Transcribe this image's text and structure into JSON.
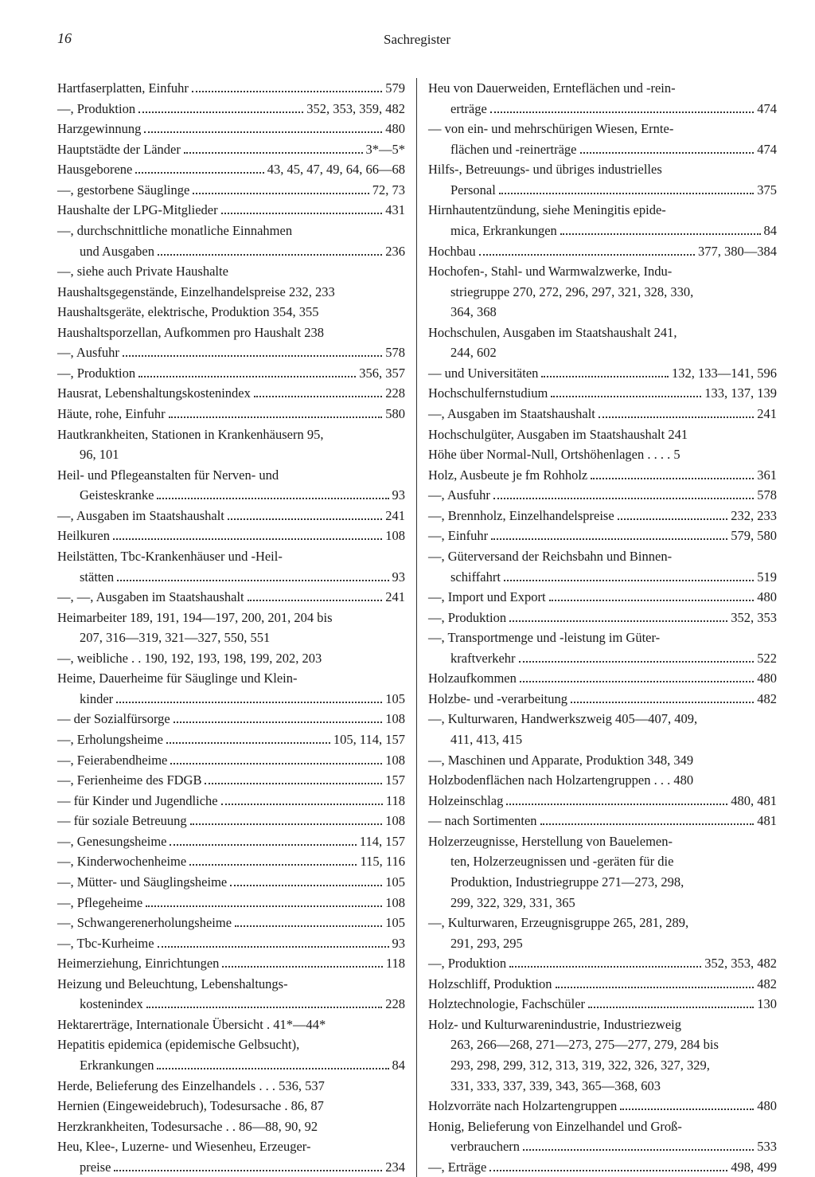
{
  "page_number": "16",
  "header": "Sachregister",
  "left": [
    {
      "text": "Hartfaserplatten, Einfuhr",
      "pages": "579",
      "dots": true
    },
    {
      "text": "—, Produktion",
      "pages": "352, 353, 359, 482",
      "dots": true
    },
    {
      "text": "Harzgewinnung",
      "pages": "480",
      "dots": true
    },
    {
      "text": "Hauptstädte der Länder",
      "pages": "3*—5*",
      "dots": true
    },
    {
      "text": "Hausgeborene",
      "pages": "43, 45, 47, 49, 64, 66—68",
      "dots": true
    },
    {
      "text": "—, gestorbene Säuglinge",
      "pages": "72, 73",
      "dots": true
    },
    {
      "text": "Haushalte der LPG-Mitglieder",
      "pages": "431",
      "dots": true
    },
    {
      "text": "—, durchschnittliche monatliche Einnahmen",
      "pages": "",
      "dots": false
    },
    {
      "text": "und Ausgaben",
      "pages": "236",
      "dots": true,
      "cont": true
    },
    {
      "text": "—, siehe auch Private Haushalte",
      "pages": "",
      "dots": false
    },
    {
      "text": "Haushaltsgegenstände, Einzelhandelspreise 232, 233",
      "pages": "",
      "dots": false
    },
    {
      "text": "Haushaltsgeräte, elektrische, Produktion   354, 355",
      "pages": "",
      "dots": false
    },
    {
      "text": "Haushaltsporzellan, Aufkommen pro Haushalt 238",
      "pages": "",
      "dots": false
    },
    {
      "text": "—, Ausfuhr",
      "pages": "578",
      "dots": true
    },
    {
      "text": "—, Produktion",
      "pages": "356, 357",
      "dots": true
    },
    {
      "text": "Hausrat, Lebenshaltungskostenindex",
      "pages": "228",
      "dots": true
    },
    {
      "text": "Häute, rohe, Einfuhr",
      "pages": "580",
      "dots": true
    },
    {
      "text": "Hautkrankheiten, Stationen in Krankenhäusern 95,",
      "pages": "",
      "dots": false
    },
    {
      "text": "96, 101",
      "pages": "",
      "dots": false,
      "cont": true
    },
    {
      "text": "Heil- und Pflegeanstalten für Nerven- und",
      "pages": "",
      "dots": false
    },
    {
      "text": "Geisteskranke",
      "pages": "93",
      "dots": true,
      "cont": true
    },
    {
      "text": "—, Ausgaben im Staatshaushalt",
      "pages": "241",
      "dots": true
    },
    {
      "text": "Heilkuren",
      "pages": "108",
      "dots": true
    },
    {
      "text": "Heilstätten, Tbc-Krankenhäuser und -Heil-",
      "pages": "",
      "dots": false
    },
    {
      "text": "stätten",
      "pages": "93",
      "dots": true,
      "cont": true
    },
    {
      "text": "—, —, Ausgaben im Staatshaushalt",
      "pages": "241",
      "dots": true
    },
    {
      "text": "Heimarbeiter 189, 191, 194—197, 200, 201, 204 bis",
      "pages": "",
      "dots": false
    },
    {
      "text": "207, 316—319, 321—327, 550, 551",
      "pages": "",
      "dots": false,
      "cont": true
    },
    {
      "text": "—, weibliche . . 190, 192, 193, 198, 199, 202, 203",
      "pages": "",
      "dots": false
    },
    {
      "text": "Heime, Dauerheime für Säuglinge und Klein-",
      "pages": "",
      "dots": false
    },
    {
      "text": "kinder",
      "pages": "105",
      "dots": true,
      "cont": true
    },
    {
      "text": "— der Sozialfürsorge",
      "pages": "108",
      "dots": true
    },
    {
      "text": "—, Erholungsheime",
      "pages": "105, 114, 157",
      "dots": true
    },
    {
      "text": "—, Feierabendheime",
      "pages": "108",
      "dots": true
    },
    {
      "text": "—, Ferienheime des FDGB",
      "pages": "157",
      "dots": true
    },
    {
      "text": "— für Kinder und Jugendliche",
      "pages": "118",
      "dots": true
    },
    {
      "text": "— für soziale Betreuung",
      "pages": "108",
      "dots": true
    },
    {
      "text": "—, Genesungsheime",
      "pages": "114, 157",
      "dots": true
    },
    {
      "text": "—, Kinderwochenheime",
      "pages": "115, 116",
      "dots": true
    },
    {
      "text": "—, Mütter- und Säuglingsheime",
      "pages": "105",
      "dots": true
    },
    {
      "text": "—, Pflegeheime",
      "pages": "108",
      "dots": true
    },
    {
      "text": "—, Schwangerenerholungsheime",
      "pages": "105",
      "dots": true
    },
    {
      "text": "—, Tbc-Kurheime",
      "pages": "93",
      "dots": true
    },
    {
      "text": "Heimerziehung, Einrichtungen",
      "pages": "118",
      "dots": true
    },
    {
      "text": "Heizung und Beleuchtung, Lebenshaltungs-",
      "pages": "",
      "dots": false
    },
    {
      "text": "kostenindex",
      "pages": "228",
      "dots": true,
      "cont": true
    },
    {
      "text": "Hektarerträge, Internationale Übersicht . 41*—44*",
      "pages": "",
      "dots": false
    },
    {
      "text": "Hepatitis epidemica (epidemische Gelbsucht),",
      "pages": "",
      "dots": false
    },
    {
      "text": "Erkrankungen",
      "pages": "84",
      "dots": true,
      "cont": true
    },
    {
      "text": "Herde, Belieferung des Einzelhandels . . . 536, 537",
      "pages": "",
      "dots": false
    },
    {
      "text": "Hernien (Eingeweidebruch), Todesursache . 86, 87",
      "pages": "",
      "dots": false
    },
    {
      "text": "Herzkrankheiten, Todesursache . . 86—88, 90, 92",
      "pages": "",
      "dots": false
    },
    {
      "text": "Heu, Klee-, Luzerne- und Wiesenheu, Erzeuger-",
      "pages": "",
      "dots": false
    },
    {
      "text": "preise",
      "pages": "234",
      "dots": true,
      "cont": true
    }
  ],
  "right": [
    {
      "text": "Heu von Dauerweiden, Ernteflächen und -rein-",
      "pages": "",
      "dots": false
    },
    {
      "text": "erträge",
      "pages": "474",
      "dots": true,
      "cont": true
    },
    {
      "text": "— von ein- und mehrschürigen Wiesen, Ernte-",
      "pages": "",
      "dots": false
    },
    {
      "text": "flächen und -reinerträge",
      "pages": "474",
      "dots": true,
      "cont": true
    },
    {
      "text": "Hilfs-, Betreuungs- und übriges industrielles",
      "pages": "",
      "dots": false
    },
    {
      "text": "Personal",
      "pages": "375",
      "dots": true,
      "cont": true
    },
    {
      "text": "Hirnhautentzündung, siehe Meningitis epide-",
      "pages": "",
      "dots": false
    },
    {
      "text": "mica, Erkrankungen",
      "pages": "84",
      "dots": true,
      "cont": true
    },
    {
      "text": "Hochbau",
      "pages": "377, 380—384",
      "dots": true
    },
    {
      "text": "Hochofen-, Stahl- und Warmwalzwerke, Indu-",
      "pages": "",
      "dots": false
    },
    {
      "text": "striegruppe  270, 272, 296, 297, 321, 328, 330,",
      "pages": "",
      "dots": false,
      "cont": true
    },
    {
      "text": "364, 368",
      "pages": "",
      "dots": false,
      "cont": true
    },
    {
      "text": "Hochschulen, Ausgaben im Staatshaushalt   241,",
      "pages": "",
      "dots": false
    },
    {
      "text": "244, 602",
      "pages": "",
      "dots": false,
      "cont": true
    },
    {
      "text": "— und Universitäten",
      "pages": "132, 133—141, 596",
      "dots": true
    },
    {
      "text": "Hochschulfernstudium",
      "pages": "133, 137, 139",
      "dots": true
    },
    {
      "text": "—, Ausgaben im Staatshaushalt",
      "pages": "241",
      "dots": true
    },
    {
      "text": "Hochschulgüter, Ausgaben im Staatshaushalt 241",
      "pages": "",
      "dots": false
    },
    {
      "text": "Höhe über Normal-Null, Ortshöhenlagen . . . .    5",
      "pages": "",
      "dots": false
    },
    {
      "text": "Holz, Ausbeute je fm Rohholz",
      "pages": "361",
      "dots": true
    },
    {
      "text": "—, Ausfuhr",
      "pages": "578",
      "dots": true
    },
    {
      "text": "—, Brennholz, Einzelhandelspreise",
      "pages": "232, 233",
      "dots": true
    },
    {
      "text": "—, Einfuhr",
      "pages": "579, 580",
      "dots": true
    },
    {
      "text": "—, Güterversand der Reichsbahn und Binnen-",
      "pages": "",
      "dots": false
    },
    {
      "text": "schiffahrt",
      "pages": "519",
      "dots": true,
      "cont": true
    },
    {
      "text": "—, Import und Export",
      "pages": "480",
      "dots": true
    },
    {
      "text": "—, Produktion",
      "pages": "352, 353",
      "dots": true
    },
    {
      "text": "—, Transportmenge und -leistung im Güter-",
      "pages": "",
      "dots": false
    },
    {
      "text": "kraftverkehr",
      "pages": "522",
      "dots": true,
      "cont": true
    },
    {
      "text": "Holzaufkommen",
      "pages": "480",
      "dots": true
    },
    {
      "text": "Holzbe- und -verarbeitung",
      "pages": "482",
      "dots": true
    },
    {
      "text": "—, Kulturwaren, Handwerkszweig 405—407, 409,",
      "pages": "",
      "dots": false
    },
    {
      "text": "411, 413, 415",
      "pages": "",
      "dots": false,
      "cont": true
    },
    {
      "text": "—, Maschinen und Apparate, Produktion 348, 349",
      "pages": "",
      "dots": false
    },
    {
      "text": "Holzbodenflächen nach Holzartengruppen . . .  480",
      "pages": "",
      "dots": false
    },
    {
      "text": "Holzeinschlag",
      "pages": "480, 481",
      "dots": true
    },
    {
      "text": "— nach Sortimenten",
      "pages": "481",
      "dots": true
    },
    {
      "text": "Holzerzeugnisse, Herstellung von Bauelemen-",
      "pages": "",
      "dots": false
    },
    {
      "text": "ten, Holzerzeugnissen und -geräten für die",
      "pages": "",
      "dots": false,
      "cont": true
    },
    {
      "text": "Produktion, Industriegruppe   271—273, 298,",
      "pages": "",
      "dots": false,
      "cont": true
    },
    {
      "text": "299, 322, 329, 331, 365",
      "pages": "",
      "dots": false,
      "cont": true
    },
    {
      "text": "—, Kulturwaren, Erzeugnisgruppe   265, 281, 289,",
      "pages": "",
      "dots": false
    },
    {
      "text": "291, 293, 295",
      "pages": "",
      "dots": false,
      "cont": true
    },
    {
      "text": "—, Produktion",
      "pages": "352, 353, 482",
      "dots": true
    },
    {
      "text": "Holzschliff, Produktion",
      "pages": "482",
      "dots": true
    },
    {
      "text": "Holztechnologie, Fachschüler",
      "pages": "130",
      "dots": true
    },
    {
      "text": "Holz- und Kulturwarenindustrie, Industriezweig",
      "pages": "",
      "dots": false
    },
    {
      "text": "263, 266—268, 271—273, 275—277, 279, 284 bis",
      "pages": "",
      "dots": false,
      "cont": true
    },
    {
      "text": "293, 298, 299, 312, 313, 319, 322, 326, 327, 329,",
      "pages": "",
      "dots": false,
      "cont": true
    },
    {
      "text": "331, 333, 337, 339, 343, 365—368, 603",
      "pages": "",
      "dots": false,
      "cont": true
    },
    {
      "text": "Holzvorräte nach Holzartengruppen",
      "pages": "480",
      "dots": true
    },
    {
      "text": "Honig, Belieferung von Einzelhandel und Groß-",
      "pages": "",
      "dots": false
    },
    {
      "text": "verbrauchern",
      "pages": "533",
      "dots": true,
      "cont": true
    },
    {
      "text": "—, Erträge",
      "pages": "498, 499",
      "dots": true
    }
  ]
}
